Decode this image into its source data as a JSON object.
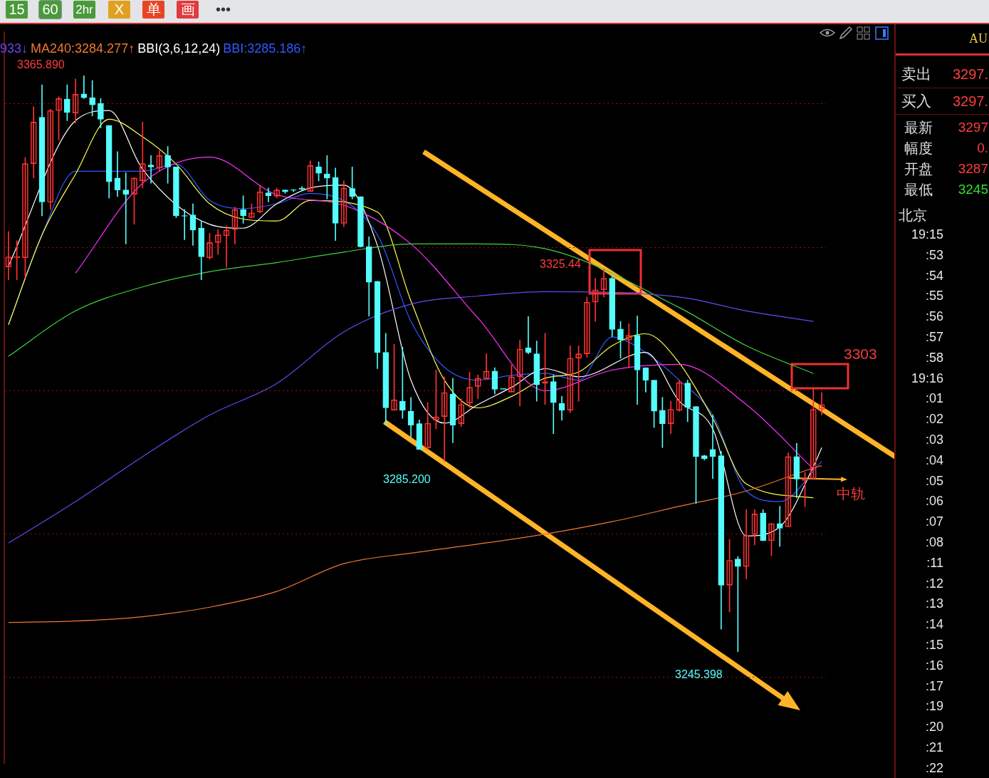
{
  "chart_data": {
    "type": "candlestick",
    "categories": [
      null,
      null,
      null,
      null,
      null,
      null,
      null,
      null,
      null,
      null,
      null,
      null,
      null,
      null,
      null,
      null,
      null,
      null,
      null,
      null,
      null,
      null,
      null,
      null,
      null,
      null,
      null,
      null,
      null,
      null,
      null,
      null,
      null,
      null,
      null,
      null,
      null,
      null,
      null,
      null,
      null,
      null,
      null,
      null,
      null,
      null,
      null,
      null,
      null,
      null,
      null,
      null,
      null,
      null,
      null,
      null,
      null,
      null,
      null,
      null,
      null,
      null,
      null,
      null,
      null,
      null,
      null,
      null,
      null,
      null,
      null,
      null,
      null,
      null,
      null,
      null,
      null,
      null,
      null,
      null,
      null,
      null,
      null,
      null,
      null,
      null,
      null,
      null,
      null,
      null,
      null,
      null,
      null,
      null,
      null,
      null,
      null,
      null
    ],
    "ohlc": [
      [
        3325.9,
        3333.3,
        3323.2,
        3328.0
      ],
      [
        3327.8,
        3331.4,
        3323.2,
        3328.1
      ],
      [
        3327.8,
        3348.8,
        3323.6,
        3347.5
      ],
      [
        3347.5,
        3359.4,
        3344.5,
        3356.2
      ],
      [
        3357.2,
        3364.0,
        3336.6,
        3339.5
      ],
      [
        3339.4,
        3358.9,
        3337.9,
        3358.6
      ],
      [
        3358.6,
        3361.5,
        3352.4,
        3361.1
      ],
      [
        3361.0,
        3364.0,
        3356.5,
        3358.2
      ],
      [
        3358.1,
        3365.2,
        3356.0,
        3362.0
      ],
      [
        3362.1,
        3365.89,
        3361.1,
        3361.3
      ],
      [
        3361.3,
        3364.9,
        3357.5,
        3359.8
      ],
      [
        3360.1,
        3361.1,
        3355.0,
        3356.8
      ],
      [
        3355.5,
        3355.5,
        3340.3,
        3343.7
      ],
      [
        3344.5,
        3350.0,
        3340.6,
        3342.0
      ],
      [
        3342.0,
        3345.6,
        3330.7,
        3341.1
      ],
      [
        3341.1,
        3344.6,
        3334.8,
        3344.5
      ],
      [
        3343.9,
        3356.2,
        3342.4,
        3347.5
      ],
      [
        3347.2,
        3349.2,
        3343.4,
        3346.8
      ],
      [
        3346.6,
        3350.2,
        3346.0,
        3349.2
      ],
      [
        3349.2,
        3351.1,
        3343.4,
        3346.8
      ],
      [
        3346.8,
        3346.8,
        3336.2,
        3336.6
      ],
      [
        3336.6,
        3337.9,
        3331.6,
        3336.5
      ],
      [
        3336.8,
        3339.1,
        3330.4,
        3333.6
      ],
      [
        3334.0,
        3335.5,
        3323.2,
        3328.0
      ],
      [
        3327.8,
        3332.9,
        3327.5,
        3331.0
      ],
      [
        3331.0,
        3333.7,
        3328.5,
        3332.6
      ],
      [
        3332.4,
        3334.5,
        3325.8,
        3333.6
      ],
      [
        3333.7,
        3338.4,
        3330.7,
        3337.9
      ],
      [
        3337.9,
        3340.8,
        3335.0,
        3336.6
      ],
      [
        3336.2,
        3339.1,
        3336.2,
        3337.2
      ],
      [
        3337.4,
        3343.0,
        3337.2,
        3341.6
      ],
      [
        3341.4,
        3342.4,
        3339.5,
        3340.8
      ],
      [
        3340.7,
        3342.4,
        3340.3,
        3342.0
      ],
      [
        3342.0,
        3342.0,
        3341.3,
        3341.6
      ],
      [
        3341.9,
        3342.1,
        3341.6,
        3341.9
      ],
      [
        3342.4,
        3342.7,
        3341.9,
        3342.1
      ],
      [
        3341.7,
        3348.1,
        3341.7,
        3347.1
      ],
      [
        3346.8,
        3347.9,
        3343.9,
        3345.5
      ],
      [
        3345.3,
        3349.2,
        3340.1,
        3344.5
      ],
      [
        3344.6,
        3346.6,
        3331.4,
        3335.0
      ],
      [
        3335.0,
        3343.9,
        3334.3,
        3342.4
      ],
      [
        3342.3,
        3346.8,
        3340.1,
        3340.6
      ],
      [
        3340.6,
        3340.6,
        3330.1,
        3330.1
      ],
      [
        3330.1,
        3332.2,
        3315.6,
        3322.7
      ],
      [
        3322.9,
        3322.9,
        3304.6,
        3308.0
      ],
      [
        3308.0,
        3312.0,
        3292.8,
        3296.4
      ],
      [
        3295.9,
        3309.7,
        3295.9,
        3298.1
      ],
      [
        3297.8,
        3309.1,
        3294.2,
        3295.9
      ],
      [
        3295.7,
        3298.6,
        3290.3,
        3292.8
      ],
      [
        3293.1,
        3293.9,
        3287.7,
        3287.7
      ],
      [
        3288.0,
        3297.5,
        3287.7,
        3293.2
      ],
      [
        3293.8,
        3304.3,
        3292.0,
        3294.5
      ],
      [
        3294.6,
        3302.9,
        3285.2,
        3299.6
      ],
      [
        3299.3,
        3302.6,
        3289.1,
        3292.8
      ],
      [
        3293.1,
        3298.3,
        3292.5,
        3297.1
      ],
      [
        3297.4,
        3303.9,
        3296.4,
        3300.7
      ],
      [
        3300.9,
        3303.3,
        3298.3,
        3302.6
      ],
      [
        3302.5,
        3307.7,
        3302.5,
        3304.1
      ],
      [
        3304.1,
        3304.8,
        3299.3,
        3300.3
      ],
      [
        3300.3,
        3300.3,
        3300.3,
        3300.3
      ],
      [
        3299.7,
        3305.4,
        3299.7,
        3302.9
      ],
      [
        3302.9,
        3310.6,
        3296.8,
        3308.7
      ],
      [
        3309.0,
        3315.5,
        3307.7,
        3308.0
      ],
      [
        3307.7,
        3310.4,
        3297.8,
        3301.2
      ],
      [
        3301.5,
        3312.0,
        3297.1,
        3301.9
      ],
      [
        3301.9,
        3303.3,
        3291.0,
        3297.5
      ],
      [
        3297.3,
        3298.8,
        3293.8,
        3295.9
      ],
      [
        3295.9,
        3309.4,
        3295.4,
        3306.8
      ],
      [
        3306.8,
        3309.4,
        3297.8,
        3307.7
      ],
      [
        3307.7,
        3319.6,
        3307.0,
        3318.5
      ],
      [
        3318.5,
        3323.5,
        3314.5,
        3321.1
      ],
      [
        3321.1,
        3325.44,
        3319.6,
        3323.5
      ],
      [
        3323.5,
        3323.9,
        3311.3,
        3312.8
      ],
      [
        3312.9,
        3314.5,
        3306.8,
        3310.6
      ],
      [
        3310.6,
        3314.0,
        3304.8,
        3311.6
      ],
      [
        3311.6,
        3315.6,
        3297.1,
        3304.3
      ],
      [
        3304.8,
        3304.8,
        3299.7,
        3302.2
      ],
      [
        3302.2,
        3302.2,
        3292.3,
        3295.7
      ],
      [
        3295.9,
        3298.6,
        3288.1,
        3293.1
      ],
      [
        3293.1,
        3297.8,
        3291.0,
        3296.1
      ],
      [
        3295.9,
        3302.2,
        3295.7,
        3301.7
      ],
      [
        3301.6,
        3302.2,
        3293.5,
        3296.5
      ],
      [
        3296.7,
        3296.7,
        3276.4,
        3286.2
      ],
      [
        3286.4,
        3286.5,
        3285.5,
        3285.8
      ],
      [
        3287.7,
        3294.9,
        3281.6,
        3286.2
      ],
      [
        3286.4,
        3287.3,
        3250.1,
        3259.3
      ],
      [
        3259.3,
        3268.9,
        3253.7,
        3264.5
      ],
      [
        3264.8,
        3265.3,
        3245.398,
        3263.2
      ],
      [
        3263.2,
        3275.1,
        3260.6,
        3269.7
      ],
      [
        3269.9,
        3275.1,
        3267.7,
        3274.2
      ],
      [
        3274.4,
        3275.1,
        3268.6,
        3268.6
      ],
      [
        3268.6,
        3272.2,
        3265.5,
        3272.2
      ],
      [
        3272.2,
        3275.8,
        3267.4,
        3271.2
      ],
      [
        3271.5,
        3287.0,
        3271.5,
        3286.2
      ],
      [
        3286.2,
        3289.0,
        3277.6,
        3281.5
      ],
      [
        3281.2,
        3282.9,
        3275.7,
        3281.6
      ],
      [
        3281.6,
        3300.3,
        3281.6,
        3296.1
      ],
      [
        3296.1,
        3299.6,
        3294.9,
        3297.1
      ]
    ],
    "colors": [
      "#ff3232",
      "#ff3232",
      "#ff3232",
      "#ff3232",
      "#54fcfc",
      "#ff3232",
      "#ff3232",
      "#54fcfc",
      "#ff3232",
      "#54fcfc",
      "#54fcfc",
      "#54fcfc",
      "#54fcfc",
      "#54fcfc",
      "#54fcfc",
      "#ff3232",
      "#ff3232",
      "#54fcfc",
      "#ff3232",
      "#54fcfc",
      "#54fcfc",
      "#54fcfc",
      "#54fcfc",
      "#54fcfc",
      "#ff3232",
      "#ff3232",
      "#ff3232",
      "#ff3232",
      "#54fcfc",
      "#ff3232",
      "#ff3232",
      "#54fcfc",
      "#ff3232",
      "#54fcfc",
      "#54fcfc",
      "#54fcfc",
      "#ff3232",
      "#54fcfc",
      "#54fcfc",
      "#54fcfc",
      "#ff3232",
      "#54fcfc",
      "#54fcfc",
      "#54fcfc",
      "#54fcfc",
      "#54fcfc",
      "#ff3232",
      "#54fcfc",
      "#54fcfc",
      "#54fcfc",
      "#ff3232",
      "#ff3232",
      "#ff3232",
      "#54fcfc",
      "#ff3232",
      "#ff3232",
      "#ff3232",
      "#ff3232",
      "#54fcfc",
      "#54fcfc",
      "#ff3232",
      "#ff3232",
      "#54fcfc",
      "#54fcfc",
      "#ff3232",
      "#54fcfc",
      "#54fcfc",
      "#ff3232",
      "#ff3232",
      "#ff3232",
      "#ff3232",
      "#ff3232",
      "#54fcfc",
      "#54fcfc",
      "#ff3232",
      "#54fcfc",
      "#54fcfc",
      "#54fcfc",
      "#54fcfc",
      "#ff3232",
      "#ff3232",
      "#54fcfc",
      "#54fcfc",
      "#54fcfc",
      "#54fcfc",
      "#54fcfc",
      "#ff3232",
      "#54fcfc",
      "#ff3232",
      "#ff3232",
      "#54fcfc",
      "#ff3232",
      "#54fcfc",
      "#ff3232",
      "#54fcfc",
      "#ff3232",
      "#ff3232",
      "#ff3232"
    ],
    "series": [
      {
        "type": "line",
        "name": "933↓",
        "color": "#6a46f0",
        "values": [
          3268.1,
          null,
          null,
          null,
          null,
          null,
          null,
          null,
          3276.8,
          null,
          null,
          null,
          null,
          null,
          null,
          null,
          3286.2,
          null,
          null,
          null,
          null,
          null,
          null,
          null,
          3294.9,
          null,
          null,
          null,
          null,
          null,
          null,
          null,
          3301.5,
          null,
          null,
          null,
          null,
          null,
          null,
          null,
          3312.3,
          null,
          null,
          null,
          null,
          null,
          null,
          null,
          3318.1,
          null,
          null,
          null,
          null,
          null,
          null,
          null,
          3319.8,
          null,
          null,
          null,
          null,
          null,
          null,
          null,
          3320.7,
          null,
          null,
          null,
          null,
          null,
          null,
          null,
          null,
          null,
          null,
          null,
          null,
          null,
          null,
          null,
          3319.6,
          null,
          null,
          null,
          null,
          null,
          null,
          null,
          3316.7,
          null,
          null,
          null,
          null,
          null,
          null,
          null,
          3314.5,
          null
        ]
      },
      {
        "type": "line",
        "name": "MA240:3284.277↑",
        "color": "#f07830",
        "values": [
          3251.5,
          null,
          null,
          null,
          null,
          null,
          null,
          null,
          3251.8,
          null,
          null,
          null,
          null,
          null,
          null,
          null,
          3252.7,
          null,
          null,
          null,
          null,
          null,
          null,
          null,
          3254.7,
          null,
          null,
          null,
          null,
          null,
          null,
          null,
          3258.0,
          null,
          null,
          null,
          null,
          null,
          null,
          null,
          3263.8,
          null,
          null,
          null,
          null,
          null,
          null,
          null,
          3266.0,
          null,
          null,
          null,
          null,
          null,
          null,
          null,
          3267.9,
          null,
          null,
          null,
          null,
          null,
          null,
          null,
          3270.0,
          null,
          null,
          null,
          null,
          null,
          null,
          null,
          3272.6,
          null,
          null,
          null,
          null,
          null,
          null,
          null,
          3275.8,
          null,
          null,
          null,
          null,
          null,
          null,
          null,
          3279.0,
          null,
          null,
          null,
          null,
          null,
          null,
          null,
          3283.8,
          3284.3
        ]
      },
      {
        "type": "line",
        "color": "#40d040",
        "values": [
          3307.2,
          null,
          null,
          null,
          null,
          null,
          null,
          null,
          3316.7,
          null,
          null,
          null,
          null,
          null,
          null,
          null,
          3321.7,
          null,
          null,
          null,
          null,
          null,
          null,
          null,
          3324.9,
          null,
          null,
          null,
          null,
          null,
          null,
          null,
          3326.8,
          null,
          null,
          null,
          null,
          null,
          null,
          null,
          3329.0,
          null,
          null,
          null,
          null,
          null,
          null,
          null,
          3330.7,
          null,
          null,
          null,
          null,
          null,
          null,
          null,
          3330.7,
          null,
          null,
          null,
          null,
          null,
          null,
          null,
          3329.7,
          null,
          null,
          null,
          null,
          null,
          null,
          null,
          null,
          null,
          null,
          null,
          null,
          null,
          null,
          null,
          3317.4,
          null,
          null,
          null,
          null,
          null,
          null,
          null,
          3309.4,
          null,
          null,
          null,
          null,
          null,
          null,
          null,
          3303.6,
          null
        ]
      },
      {
        "type": "line",
        "color": "#ff30ff",
        "values": [
          null,
          null,
          null,
          null,
          null,
          null,
          null,
          null,
          3324.6,
          null,
          null,
          null,
          null,
          null,
          null,
          null,
          3343.4,
          null,
          null,
          null,
          null,
          null,
          null,
          null,
          3348.9,
          null,
          null,
          null,
          null,
          null,
          null,
          null,
          3341.0,
          null,
          null,
          null,
          null,
          null,
          null,
          null,
          3338.8,
          null,
          null,
          null,
          null,
          null,
          null,
          null,
          3330.7,
          null,
          null,
          null,
          null,
          null,
          null,
          null,
          3315.2,
          null,
          null,
          null,
          null,
          null,
          null,
          null,
          3300.0,
          null,
          null,
          null,
          null,
          null,
          null,
          null,
          3304.3,
          null,
          null,
          null,
          null,
          null,
          null,
          null,
          3305.5,
          null,
          null,
          null,
          null,
          null,
          null,
          null,
          3297.1,
          null,
          null,
          null,
          null,
          null,
          null,
          null,
          3283.6,
          null
        ]
      },
      {
        "type": "line",
        "color": "#ffff50",
        "values": [
          3313.8,
          null,
          null,
          null,
          3332.6,
          null,
          null,
          null,
          3345.3,
          null,
          null,
          null,
          3356.8,
          null,
          null,
          null,
          3353.1,
          null,
          null,
          null,
          3347.4,
          null,
          null,
          null,
          3339.1,
          null,
          null,
          null,
          3335.9,
          null,
          null,
          null,
          3335.5,
          null,
          null,
          null,
          3339.8,
          null,
          null,
          null,
          null,
          null,
          null,
          null,
          3337.4,
          null,
          null,
          null,
          3318.8,
          null,
          null,
          null,
          3302.2,
          null,
          null,
          null,
          3296.4,
          null,
          null,
          null,
          3298.8,
          null,
          null,
          null,
          3302.6,
          null,
          null,
          null,
          3303.9,
          null,
          null,
          null,
          3309.4,
          null,
          null,
          null,
          3311.9,
          null,
          null,
          null,
          3305.8,
          null,
          null,
          null,
          3294.2,
          null,
          null,
          null,
          3280.5,
          null,
          null,
          null,
          null,
          null,
          null,
          null,
          3277.6,
          null
        ]
      },
      {
        "type": "line",
        "color": "#ffffff",
        "values": [
          3326.1,
          null,
          null,
          null,
          null,
          null,
          null,
          null,
          3356.5,
          null,
          null,
          null,
          3358.6,
          null,
          null,
          null,
          3346.3,
          null,
          null,
          null,
          null,
          null,
          null,
          null,
          3334.8,
          null,
          null,
          null,
          3334.0,
          null,
          null,
          null,
          3339.1,
          null,
          null,
          null,
          3342.4,
          null,
          null,
          null,
          3343.0,
          null,
          null,
          null,
          3330.4,
          null,
          null,
          null,
          3302.2,
          null,
          null,
          null,
          3293.2,
          null,
          null,
          null,
          3297.1,
          null,
          null,
          null,
          3300.7,
          null,
          null,
          null,
          3304.6,
          null,
          null,
          null,
          3302.9,
          null,
          null,
          null,
          null,
          null,
          null,
          null,
          3308.0,
          null,
          null,
          null,
          3297.8,
          null,
          null,
          null,
          3292.0,
          null,
          null,
          null,
          3269.6,
          null,
          null,
          null,
          3271.5,
          null,
          null,
          null,
          3284.1,
          3288.1
        ]
      },
      {
        "type": "line",
        "name": "BBI:3285.186↑",
        "color": "#3058ff",
        "values": [
          3313.8,
          null,
          null,
          null,
          3332.6,
          null,
          null,
          null,
          3345.9,
          null,
          null,
          null,
          null,
          null,
          null,
          null,
          3345.9,
          null,
          null,
          null,
          3347.4,
          null,
          null,
          null,
          3339.8,
          null,
          null,
          null,
          3338.1,
          null,
          null,
          null,
          3339.1,
          null,
          null,
          null,
          3341.3,
          null,
          null,
          null,
          null,
          null,
          null,
          null,
          3332.6,
          null,
          null,
          null,
          3314.5,
          null,
          null,
          null,
          3304.9,
          null,
          null,
          null,
          3302.2,
          null,
          null,
          null,
          3303.2,
          null,
          null,
          null,
          3303.6,
          null,
          null,
          null,
          3302.2,
          null,
          null,
          null,
          3311.2,
          null,
          null,
          null,
          3308.0,
          null,
          null,
          null,
          3302.2,
          null,
          null,
          null,
          3294.9,
          null,
          null,
          null,
          3279.0,
          null,
          null,
          null,
          3276.8,
          null,
          null,
          null,
          null,
          3285.2
        ]
      }
    ],
    "legend": "top left",
    "legend_title": "BBI(3,6,12,24)",
    "ylim": [
      3222,
      3375
    ],
    "yticks": [
      {
        "value": 3240,
        "label": null
      },
      {
        "value": 3270,
        "label": null
      },
      {
        "value": 3300,
        "label": null
      },
      {
        "value": 3330,
        "label": null
      },
      {
        "value": 3360,
        "label": null
      }
    ],
    "grid": "y",
    "annotations": [
      "3303",
      "中轨",
      "3365.890",
      "3325.44",
      "3285.200",
      "3245.398",
      "15",
      "60",
      "2hr",
      "X",
      "单",
      "画",
      "•••",
      "AU",
      "卖出",
      "3297.",
      "买入",
      "3297.",
      "最新",
      "3297",
      "幅度",
      "0.",
      "开盘",
      "3287",
      "最低",
      "3245",
      "北京",
      "19:15",
      ":53",
      ":54",
      ":55",
      ":56",
      ":57",
      ":58",
      "19:16",
      ":01",
      ":02",
      ":03",
      ":04",
      ":05",
      ":06",
      ":07",
      ":08",
      ":11",
      ":12",
      ":13",
      ":14",
      ":15",
      ":16",
      ":17",
      ":19",
      ":20",
      ":21",
      ":22"
    ]
  }
}
